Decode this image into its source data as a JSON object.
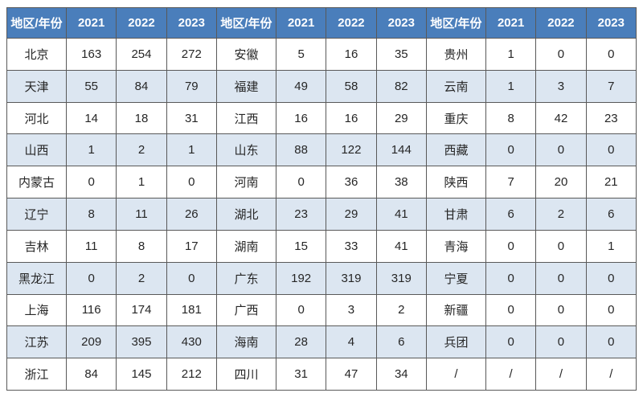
{
  "chart_data": {
    "type": "table",
    "title": "",
    "header": [
      "地区/年份",
      "2021",
      "2022",
      "2023"
    ],
    "header_repeats": 3,
    "rows": [
      [
        "北京",
        163,
        254,
        272,
        "安徽",
        5,
        16,
        35,
        "贵州",
        1,
        0,
        0
      ],
      [
        "天津",
        55,
        84,
        79,
        "福建",
        49,
        58,
        82,
        "云南",
        1,
        3,
        7
      ],
      [
        "河北",
        14,
        18,
        31,
        "江西",
        16,
        16,
        29,
        "重庆",
        8,
        42,
        23
      ],
      [
        "山西",
        1,
        2,
        1,
        "山东",
        88,
        122,
        144,
        "西藏",
        0,
        0,
        0
      ],
      [
        "内蒙古",
        0,
        1,
        0,
        "河南",
        0,
        36,
        38,
        "陕西",
        7,
        20,
        21
      ],
      [
        "辽宁",
        8,
        11,
        26,
        "湖北",
        23,
        29,
        41,
        "甘肃",
        6,
        2,
        6
      ],
      [
        "吉林",
        11,
        8,
        17,
        "湖南",
        15,
        33,
        41,
        "青海",
        0,
        0,
        1
      ],
      [
        "黑龙江",
        0,
        2,
        0,
        "广东",
        192,
        319,
        319,
        "宁夏",
        0,
        0,
        0
      ],
      [
        "上海",
        116,
        174,
        181,
        "广西",
        0,
        3,
        2,
        "新疆",
        0,
        0,
        0
      ],
      [
        "江苏",
        209,
        395,
        430,
        "海南",
        28,
        4,
        6,
        "兵团",
        0,
        0,
        0
      ],
      [
        "浙江",
        84,
        145,
        212,
        "四川",
        31,
        47,
        34,
        "/",
        "/",
        "/",
        "/"
      ]
    ],
    "layout_hints": {
      "groups": 3,
      "columns_per_group": 4,
      "striped_rows": true,
      "grid": true
    }
  },
  "colors": {
    "header_bg": "#4A7EBB",
    "header_text": "#FFFFFF",
    "stripe_bg": "#DCE6F1",
    "row_bg": "#FFFFFF",
    "border": "#595959",
    "text": "#262626"
  }
}
